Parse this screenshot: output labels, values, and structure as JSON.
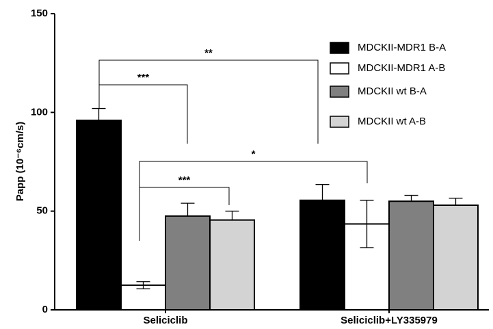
{
  "chart_data": {
    "type": "bar",
    "y_label": "Papp (10⁻⁶cm/s)",
    "categories": [
      "Seliciclib",
      "Seliciclib+LY335979"
    ],
    "series": [
      {
        "name": "MDCKII-MDR1 B-A",
        "color": "#000000",
        "values": [
          96,
          55.5
        ],
        "errors": [
          6,
          8
        ]
      },
      {
        "name": "MDCKII-MDR1 A-B",
        "color": "#ffffff",
        "values": [
          12.5,
          43.5
        ],
        "errors": [
          1.8,
          12
        ]
      },
      {
        "name": "MDCKII wt B-A",
        "color": "#808080",
        "values": [
          47.5,
          55
        ],
        "errors": [
          6.5,
          3
        ]
      },
      {
        "name": "MDCKII wt A-B",
        "color": "#d3d3d3",
        "values": [
          45.5,
          53
        ],
        "errors": [
          4.5,
          3.5
        ]
      }
    ],
    "annotations": [
      "**",
      "***",
      "*",
      "***"
    ],
    "ylim": [
      0,
      150
    ],
    "yticks": [
      0,
      50,
      100,
      150
    ],
    "legend": "top-right"
  }
}
